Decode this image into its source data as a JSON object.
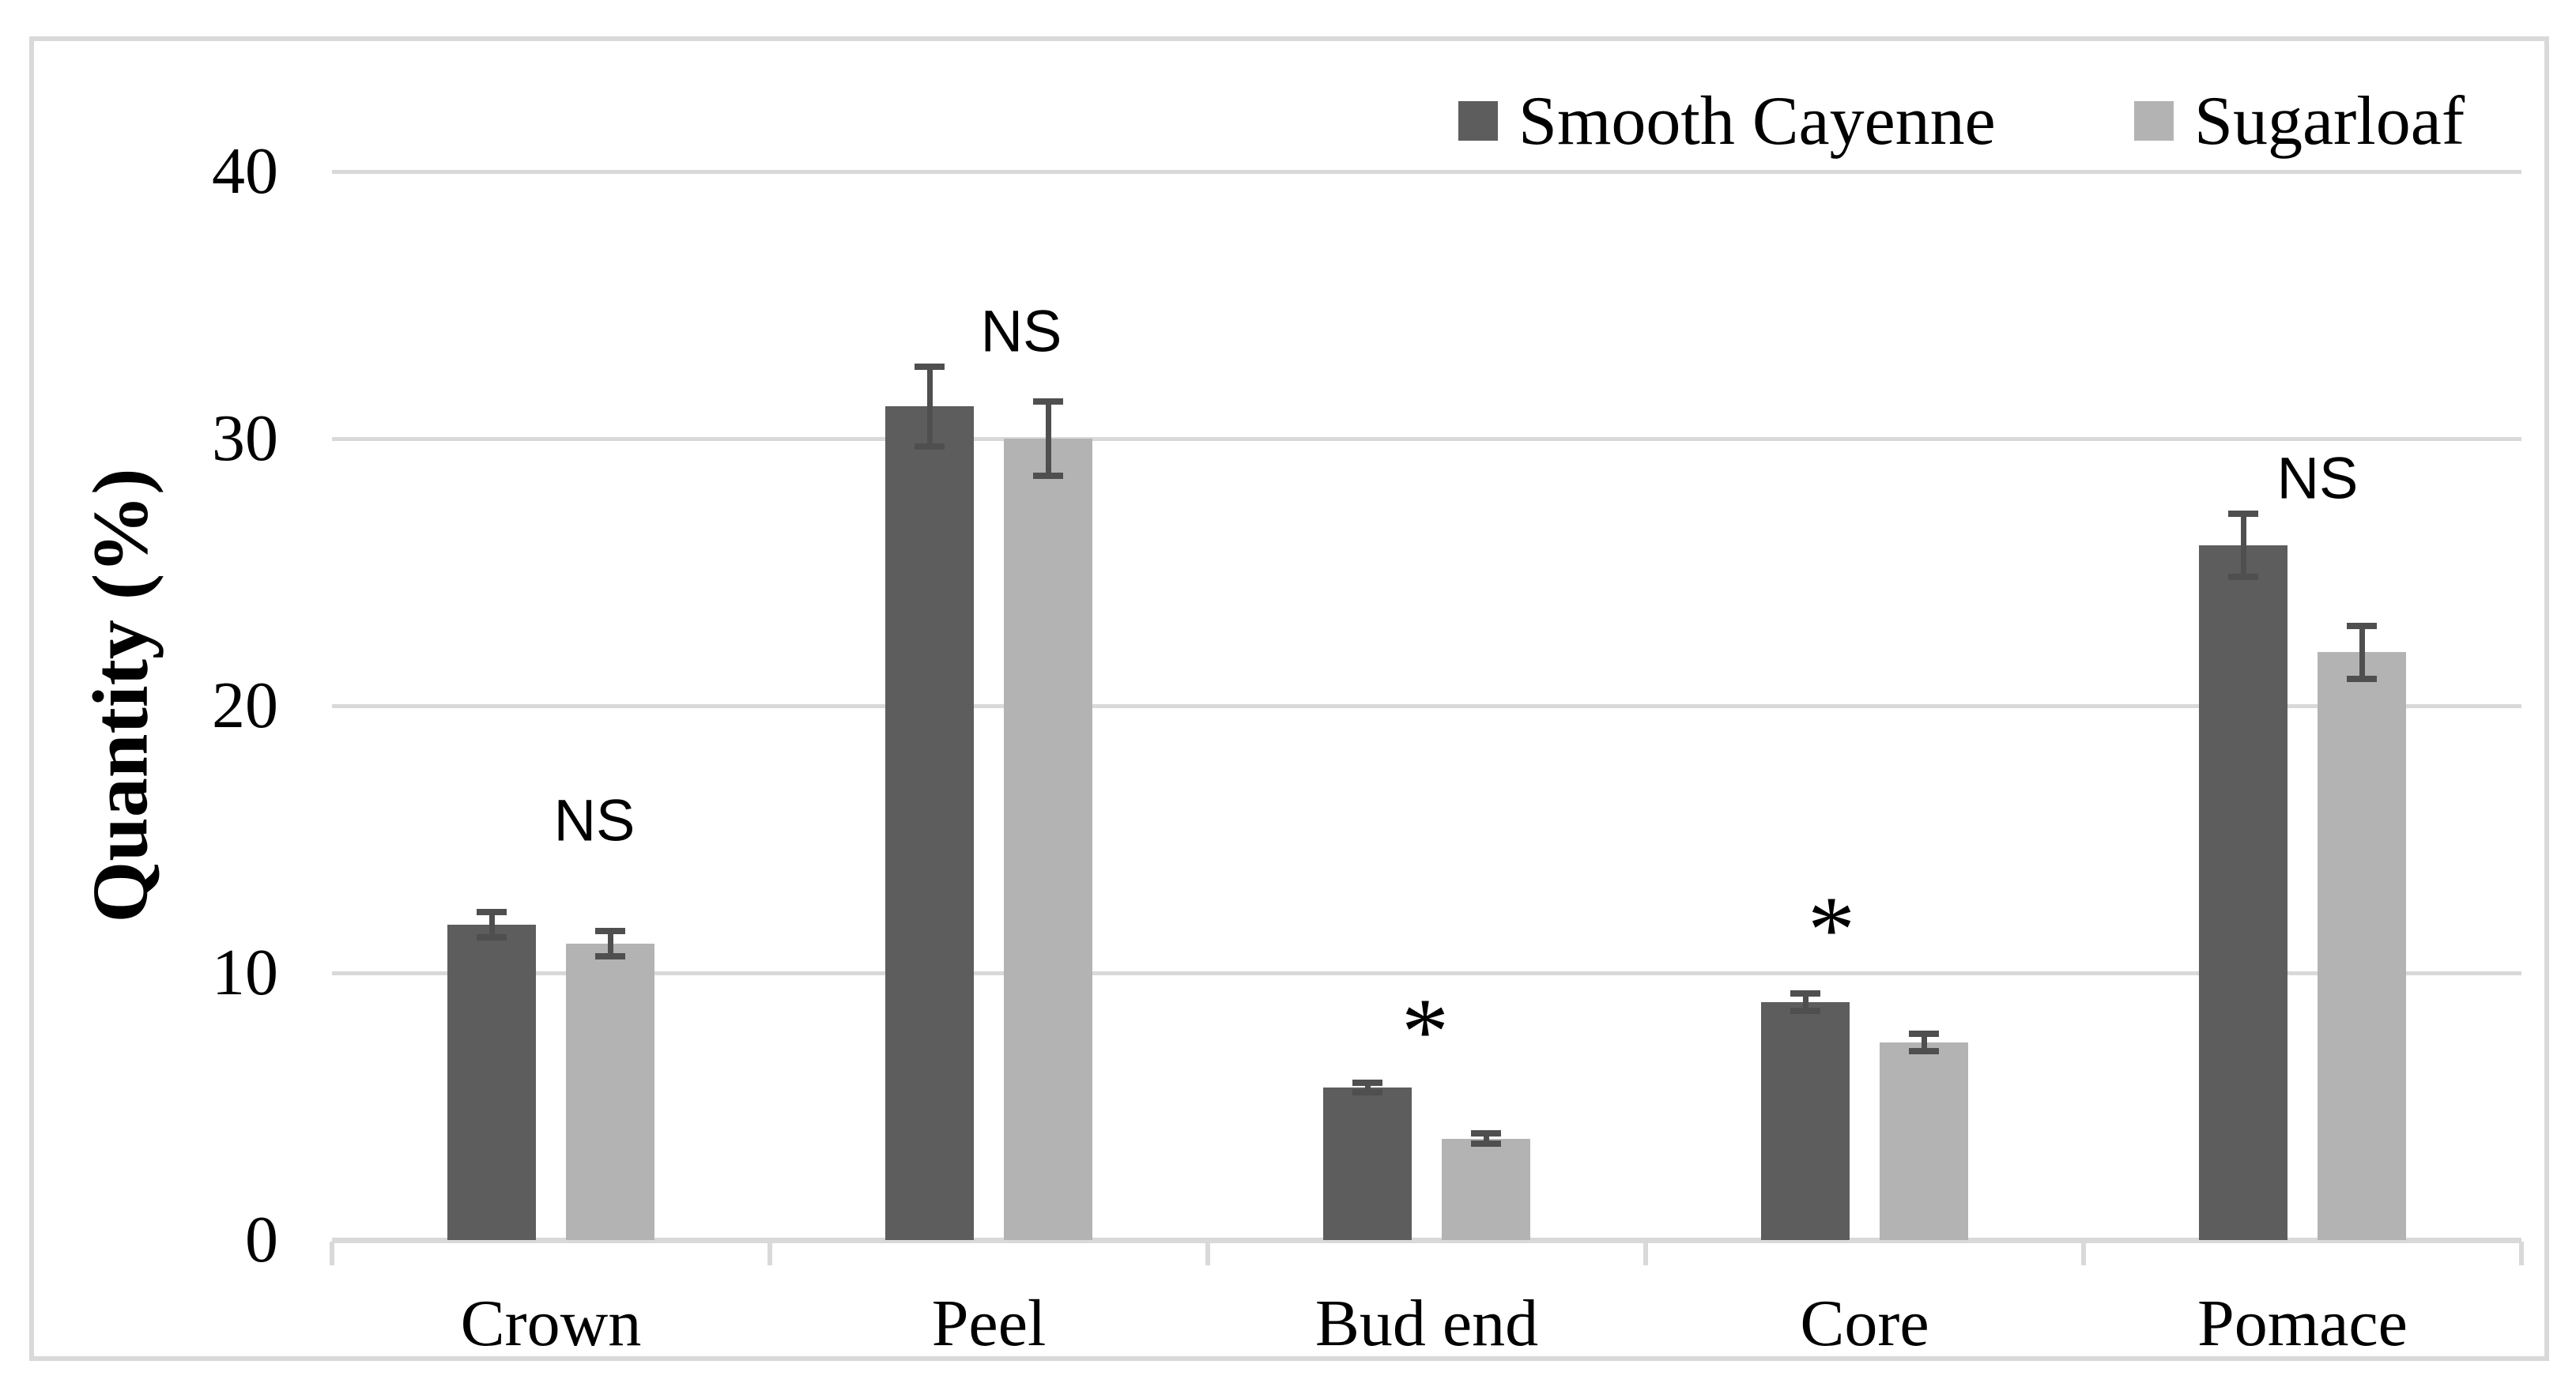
{
  "chart_data": {
    "type": "bar",
    "title": "",
    "ylabel": "Quantity (%)",
    "xlabel": "",
    "ylim": [
      0,
      40
    ],
    "yticks": [
      0,
      10,
      20,
      30,
      40
    ],
    "grid": "horizontal-light-gray",
    "legend_position": "top-right-inside",
    "categories": [
      "Crown",
      "Peel",
      "Bud end",
      "Core",
      "Pomace"
    ],
    "series": [
      {
        "name": "Smooth Cayenne",
        "color": "#5d5d5d",
        "values": [
          11.8,
          31.2,
          5.7,
          8.9,
          26.0
        ],
        "errors": [
          0.6,
          1.6,
          0.3,
          0.45,
          1.3
        ]
      },
      {
        "name": "Sugarloaf",
        "color": "#b3b3b3",
        "values": [
          11.1,
          30.0,
          3.8,
          7.4,
          22.0
        ],
        "errors": [
          0.6,
          1.5,
          0.3,
          0.45,
          1.1
        ]
      }
    ],
    "annotations": [
      {
        "category": "Crown",
        "text": "NS",
        "style": "ns",
        "dx": 55,
        "y": 15.8
      },
      {
        "category": "Peel",
        "text": "NS",
        "style": "ns",
        "dx": 41,
        "y": 34.1
      },
      {
        "category": "Bud end",
        "text": "*",
        "style": "star",
        "dx": -2,
        "y": 8.5
      },
      {
        "category": "Core",
        "text": "*",
        "style": "star",
        "dx": -42,
        "y": 12.3
      },
      {
        "category": "Pomace",
        "text": "NS",
        "style": "ns",
        "dx": 19,
        "y": 28.6
      }
    ],
    "colors": {
      "error_bar": "#4f4f4f",
      "axis_and_grid": "#d9d9d9",
      "figure_border": "#d9d9d9",
      "text": "#000000",
      "background": "#ffffff"
    }
  }
}
